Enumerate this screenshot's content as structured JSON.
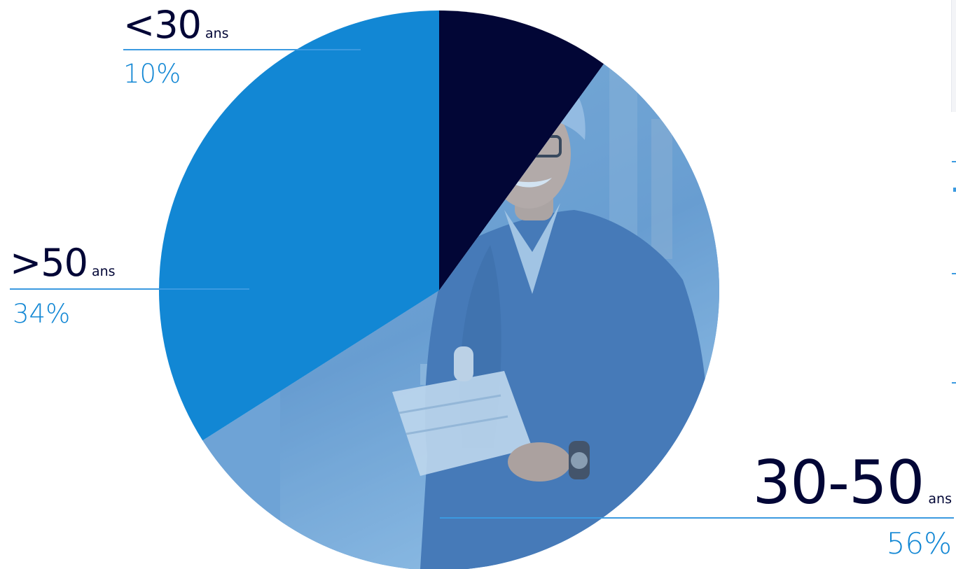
{
  "chart_data": {
    "type": "pie",
    "title": "",
    "slices": [
      {
        "key": "lt30",
        "label": "<30",
        "unit": "ans",
        "value": 10,
        "percent_label": "10%",
        "color": "#020636"
      },
      {
        "key": "mid",
        "label": "30-50",
        "unit": "ans",
        "value": 56,
        "percent_label": "56%",
        "color": "#6ea3d6"
      },
      {
        "key": "gt50",
        "label": ">50",
        "unit": "ans",
        "value": 34,
        "percent_label": "34%",
        "color": "#1287d4"
      }
    ],
    "start_angle": "12 o'clock",
    "direction": "clockwise, starting with the 30-50 slice",
    "legend": "none; labels with leader lines beside each slice"
  },
  "colors": {
    "label_text": "#020636",
    "percent_text": "#1287d4",
    "leader_line": "#3b9ae0",
    "photo_tint": "#5f9ad2"
  },
  "images": {
    "mid_slice_photo": "smiling man in blue lab coat and hairnet holding papers"
  }
}
